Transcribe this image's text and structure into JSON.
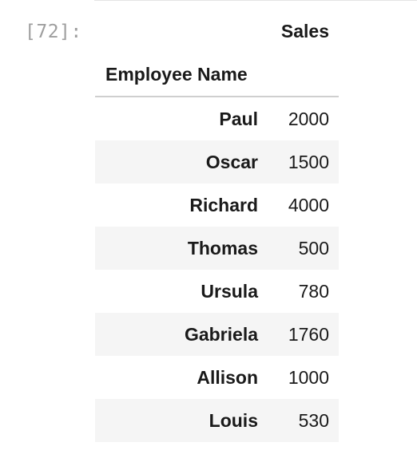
{
  "cell": {
    "prompt": "[72]:"
  },
  "dataframe": {
    "column_header": "Sales",
    "index_name": "Employee Name",
    "rows": [
      {
        "name": "Paul",
        "sales": "2000"
      },
      {
        "name": "Oscar",
        "sales": "1500"
      },
      {
        "name": "Richard",
        "sales": "4000"
      },
      {
        "name": "Thomas",
        "sales": "500"
      },
      {
        "name": "Ursula",
        "sales": "780"
      },
      {
        "name": "Gabriela",
        "sales": "1760"
      },
      {
        "name": "Allison",
        "sales": "1000"
      },
      {
        "name": "Louis",
        "sales": "530"
      }
    ]
  }
}
